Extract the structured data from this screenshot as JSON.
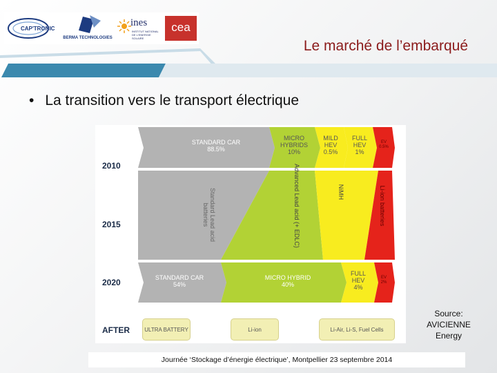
{
  "logos": {
    "cap": {
      "text": "CAP'TRONIC"
    },
    "berma": {
      "text": "BERMA TECHNOLOGIES"
    },
    "ines": {
      "text": "ines",
      "subtitle": "INSTITUT NATIONAL DE L'ENERGIE SOLAIRE"
    },
    "cea": {
      "text": "cea"
    }
  },
  "slide": {
    "title": "Le marché de l’embarqué",
    "bullet": "La transition vers le transport électrique",
    "source": "Source: AVICIENNE Energy",
    "footer": "Journée ‘Stockage d’énergie électrique’, Montpellier 23 septembre 2014"
  },
  "colors": {
    "title": "#8b1b1b",
    "grey": "#b3b3b3",
    "green": "#b2d235",
    "yellow": "#f8ec1f",
    "red": "#e5231b",
    "accent": "#3b89ae"
  },
  "chart": {
    "years": [
      "2010",
      "2015",
      "2020",
      "AFTER"
    ],
    "row2010": {
      "standard": "STANDARD CAR",
      "standard_share": "88.5%",
      "micro": "MICRO HYBRIDS",
      "micro_share": "10%",
      "mild": "MILD HEV",
      "mild_share": "0.5%",
      "full": "FULL HEV",
      "full_share": "1%",
      "ev": "EV",
      "ev_share": "0.5%"
    },
    "row2015": {
      "grey": "Standard Lead acid batteries",
      "green": "Advanced Lead acid (+ EDLC)",
      "yellow": "NiMH",
      "red": "Li-ion batteries"
    },
    "row2020": {
      "standard": "STANDARD CAR",
      "standard_share": "54%",
      "micro": "MICRO HYBRID",
      "micro_share": "40%",
      "full": "FULL HEV",
      "full_share": "4%",
      "ev": "EV",
      "ev_share": "2%"
    },
    "after": [
      "ULTRA BATTERY",
      "Li-ion",
      "Li-Air, Li-S, Fuel Cells"
    ]
  }
}
